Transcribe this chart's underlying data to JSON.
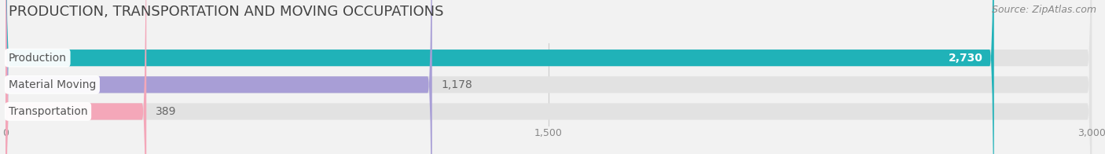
{
  "title": "PRODUCTION, TRANSPORTATION AND MOVING OCCUPATIONS",
  "source": "Source: ZipAtlas.com",
  "categories": [
    "Production",
    "Material Moving",
    "Transportation"
  ],
  "values": [
    2730,
    1178,
    389
  ],
  "bar_colors": [
    "#20b2b8",
    "#a89ed6",
    "#f4a7b9"
  ],
  "value_labels": [
    "2,730",
    "1,178",
    "389"
  ],
  "value_inside": [
    true,
    false,
    false
  ],
  "value_text_colors": [
    "white",
    "#666666",
    "#666666"
  ],
  "xlim": [
    0,
    3000
  ],
  "xticks": [
    0,
    1500,
    3000
  ],
  "xtick_labels": [
    "0",
    "1,500",
    "3,000"
  ],
  "background_color": "#f2f2f2",
  "bar_background_color": "#e2e2e2",
  "title_fontsize": 13,
  "source_fontsize": 9,
  "label_fontsize": 10,
  "value_fontsize": 10,
  "bar_height": 0.62,
  "bar_spacing": 1.0
}
